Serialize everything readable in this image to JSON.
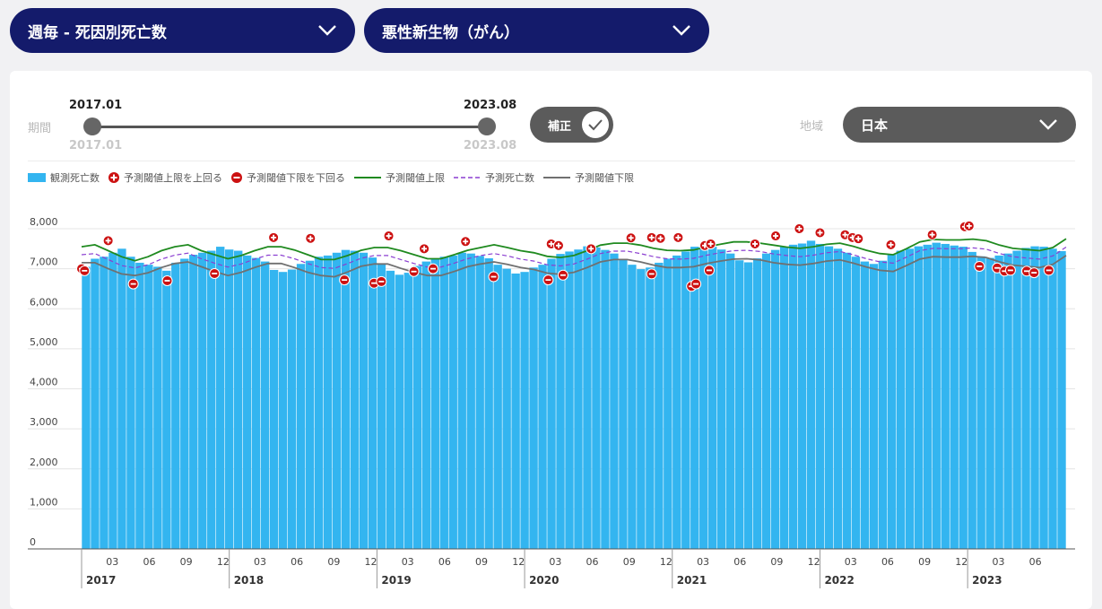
{
  "filters": {
    "category_dropdown": "週毎 - 死因別死亡数",
    "cause_dropdown": "悪性新生物（がん）"
  },
  "period": {
    "label": "期間",
    "start": "2017.01",
    "end": "2023.08",
    "start_min": "2017.01",
    "end_max": "2023.08"
  },
  "toggle": {
    "label": "補正",
    "checked": true
  },
  "region": {
    "label": "地域",
    "value": "日本"
  },
  "legend": {
    "observed": "観測死亡数",
    "above": "予測閾値上限を上回る",
    "below": "予測閾値下限を下回る",
    "upper": "予測閾値上限",
    "predicted": "予測死亡数",
    "lower": "予測閾値下限"
  },
  "colors": {
    "navy": "#141b6b",
    "bar": "#33b5f0",
    "upper": "#1f8a1f",
    "predicted": "#8b3fd1",
    "lower": "#707070",
    "marker": "#cc1111"
  },
  "chart_data": {
    "type": "bar",
    "ylim": [
      0,
      8500
    ],
    "yticks": [
      "0",
      "1,000",
      "2,000",
      "3,000",
      "4,000",
      "5,000",
      "6,000",
      "7,000",
      "8,000"
    ],
    "month_ticks": [
      "03",
      "06",
      "09",
      "12"
    ],
    "years": [
      "2017",
      "2018",
      "2019",
      "2020",
      "2021",
      "2022",
      "2023"
    ],
    "last_year_months": [
      "03",
      "06"
    ],
    "x_range": [
      "2017-01",
      "2023-08"
    ],
    "series": [
      {
        "name": "観測死亡数",
        "values": [
          7050,
          7250,
          7300,
          7400,
          7500,
          7300,
          7150,
          7100,
          7050,
          6950,
          7150,
          7250,
          7350,
          7400,
          7450,
          7550,
          7480,
          7450,
          7330,
          7270,
          7180,
          6970,
          6920,
          6980,
          7120,
          7200,
          7300,
          7330,
          7400,
          7470,
          7450,
          7400,
          7280,
          7130,
          6950,
          6850,
          6900,
          7070,
          7180,
          7250,
          7300,
          7330,
          7400,
          7380,
          7320,
          7260,
          7100,
          7000,
          6880,
          6920,
          7030,
          7100,
          7250,
          7370,
          7430,
          7480,
          7560,
          7530,
          7470,
          7380,
          7230,
          7100,
          6990,
          7030,
          7150,
          7250,
          7330,
          7430,
          7550,
          7560,
          7550,
          7480,
          7380,
          7210,
          7160,
          7260,
          7380,
          7470,
          7550,
          7600,
          7630,
          7700,
          7620,
          7560,
          7500,
          7400,
          7300,
          7180,
          7120,
          7200,
          7350,
          7450,
          7500,
          7560,
          7600,
          7650,
          7620,
          7580,
          7550,
          7420,
          7310,
          7270,
          7330,
          7380,
          7450,
          7520,
          7560,
          7550,
          7500,
          7440
        ]
      },
      {
        "name": "予測閾値上限",
        "values": [
          7550,
          7600,
          7450,
          7300,
          7200,
          7300,
          7450,
          7550,
          7600,
          7450,
          7350,
          7250,
          7330,
          7450,
          7550,
          7550,
          7470,
          7350,
          7230,
          7230,
          7330,
          7460,
          7530,
          7530,
          7450,
          7350,
          7250,
          7250,
          7350,
          7460,
          7530,
          7600,
          7530,
          7450,
          7400,
          7310,
          7280,
          7330,
          7450,
          7590,
          7640,
          7640,
          7590,
          7510,
          7460,
          7450,
          7470,
          7550,
          7610,
          7670,
          7670,
          7640,
          7590,
          7540,
          7510,
          7550,
          7610,
          7640,
          7560,
          7460,
          7380,
          7350,
          7500,
          7670,
          7730,
          7720,
          7720,
          7740,
          7700,
          7590,
          7510,
          7480,
          7450,
          7530,
          7750
        ]
      },
      {
        "name": "予測死亡数",
        "values": [
          7350,
          7380,
          7230,
          7080,
          7020,
          7100,
          7240,
          7340,
          7390,
          7250,
          7140,
          7040,
          7120,
          7240,
          7340,
          7340,
          7250,
          7130,
          7030,
          7010,
          7130,
          7260,
          7330,
          7330,
          7230,
          7130,
          7040,
          7040,
          7140,
          7250,
          7330,
          7380,
          7320,
          7240,
          7190,
          7100,
          7070,
          7120,
          7240,
          7380,
          7440,
          7440,
          7380,
          7300,
          7250,
          7240,
          7260,
          7340,
          7400,
          7450,
          7460,
          7430,
          7370,
          7330,
          7300,
          7340,
          7400,
          7430,
          7350,
          7250,
          7170,
          7140,
          7290,
          7450,
          7510,
          7500,
          7500,
          7520,
          7490,
          7380,
          7300,
          7270,
          7240,
          7320,
          7540
        ]
      },
      {
        "name": "予測閾値下限",
        "values": [
          7150,
          7150,
          7000,
          6870,
          6830,
          6900,
          7030,
          7130,
          7170,
          7050,
          6930,
          6830,
          6910,
          7030,
          7130,
          7130,
          7030,
          6910,
          6830,
          6800,
          6920,
          7060,
          7120,
          7120,
          7010,
          6910,
          6830,
          6830,
          6930,
          7050,
          7120,
          7170,
          7110,
          7030,
          6980,
          6890,
          6860,
          6910,
          7030,
          7170,
          7230,
          7230,
          7170,
          7090,
          7030,
          7030,
          7050,
          7130,
          7190,
          7240,
          7250,
          7220,
          7150,
          7110,
          7090,
          7130,
          7190,
          7220,
          7140,
          7040,
          6960,
          6930,
          7080,
          7240,
          7300,
          7290,
          7290,
          7310,
          7280,
          7170,
          7090,
          7060,
          7030,
          7110,
          7330
        ]
      }
    ],
    "markers_above": [
      {
        "t": 0.18,
        "y": 7700
      },
      {
        "t": 1.3,
        "y": 7780
      },
      {
        "t": 1.55,
        "y": 7760
      },
      {
        "t": 2.08,
        "y": 7820
      },
      {
        "t": 2.32,
        "y": 7500
      },
      {
        "t": 2.6,
        "y": 7680
      },
      {
        "t": 3.18,
        "y": 7620
      },
      {
        "t": 3.23,
        "y": 7580
      },
      {
        "t": 3.45,
        "y": 7500
      },
      {
        "t": 3.72,
        "y": 7770
      },
      {
        "t": 3.86,
        "y": 7780
      },
      {
        "t": 3.92,
        "y": 7760
      },
      {
        "t": 4.04,
        "y": 7780
      },
      {
        "t": 4.22,
        "y": 7580
      },
      {
        "t": 4.26,
        "y": 7620
      },
      {
        "t": 4.56,
        "y": 7620
      },
      {
        "t": 4.7,
        "y": 7820
      },
      {
        "t": 4.86,
        "y": 8000
      },
      {
        "t": 5.0,
        "y": 7900
      },
      {
        "t": 5.17,
        "y": 7850
      },
      {
        "t": 5.22,
        "y": 7780
      },
      {
        "t": 5.26,
        "y": 7750
      },
      {
        "t": 5.48,
        "y": 7600
      },
      {
        "t": 5.76,
        "y": 7850
      },
      {
        "t": 5.98,
        "y": 8050
      },
      {
        "t": 6.01,
        "y": 8070
      }
    ],
    "markers_below": [
      {
        "t": 0.0,
        "y": 7000
      },
      {
        "t": 0.02,
        "y": 6950
      },
      {
        "t": 0.35,
        "y": 6620
      },
      {
        "t": 0.58,
        "y": 6700
      },
      {
        "t": 0.9,
        "y": 6880
      },
      {
        "t": 1.78,
        "y": 6720
      },
      {
        "t": 1.98,
        "y": 6640
      },
      {
        "t": 2.03,
        "y": 6680
      },
      {
        "t": 2.25,
        "y": 6930
      },
      {
        "t": 2.38,
        "y": 7000
      },
      {
        "t": 2.79,
        "y": 6800
      },
      {
        "t": 3.16,
        "y": 6720
      },
      {
        "t": 3.26,
        "y": 6840
      },
      {
        "t": 3.86,
        "y": 6870
      },
      {
        "t": 4.13,
        "y": 6560
      },
      {
        "t": 4.16,
        "y": 6620
      },
      {
        "t": 6.08,
        "y": 7060
      },
      {
        "t": 6.2,
        "y": 7020
      },
      {
        "t": 6.25,
        "y": 6940
      },
      {
        "t": 6.29,
        "y": 6960
      },
      {
        "t": 6.4,
        "y": 6940
      },
      {
        "t": 6.45,
        "y": 6900
      },
      {
        "t": 6.55,
        "y": 6960
      },
      {
        "t": 4.25,
        "y": 6960
      }
    ]
  }
}
